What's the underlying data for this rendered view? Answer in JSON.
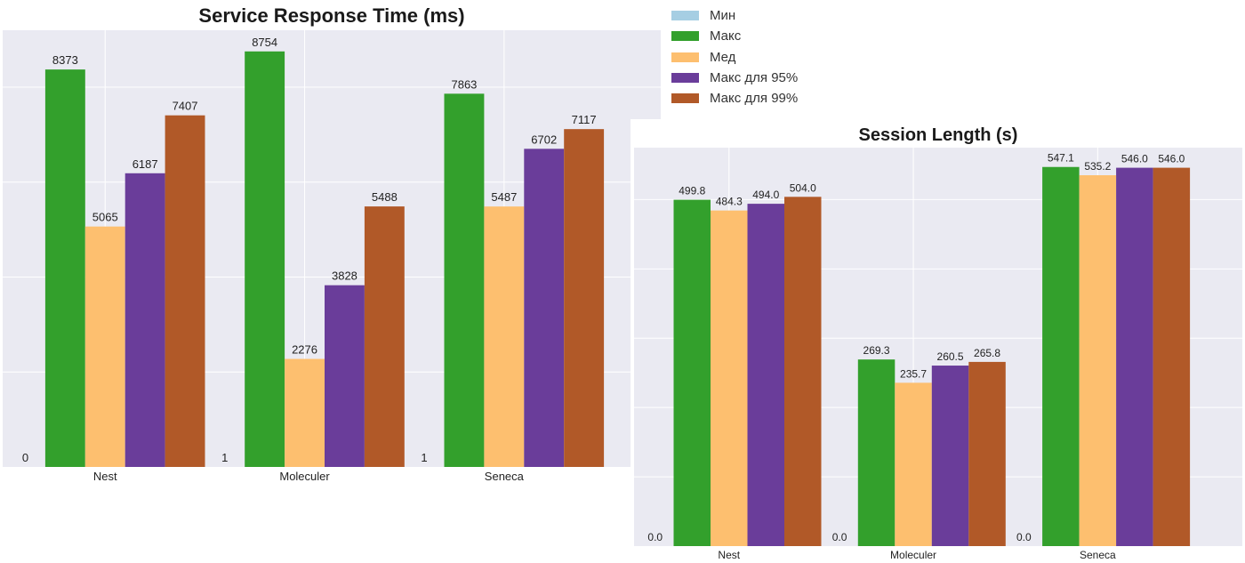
{
  "colors": [
    "#a6cee3",
    "#33a02c",
    "#fdbf6f",
    "#6a3d9a",
    "#b15928"
  ],
  "legend": [
    "Мин",
    "Макс",
    "Мед",
    "Макс для 95%",
    "Макс для 99%"
  ],
  "chart_data": [
    {
      "type": "bar",
      "title": "Service Response Time (ms)",
      "categories": [
        "Nest",
        "Moleculer",
        "Seneca"
      ],
      "ylim": [
        0,
        9200
      ],
      "grid": true,
      "series": [
        {
          "name": "Мин",
          "values": [
            0,
            1,
            1
          ],
          "labels": [
            "0",
            "1",
            "1"
          ]
        },
        {
          "name": "Макс",
          "values": [
            8373,
            8754,
            7863
          ],
          "labels": [
            "8373",
            "8754",
            "7863"
          ]
        },
        {
          "name": "Мед",
          "values": [
            5065,
            2276,
            5487
          ],
          "labels": [
            "5065",
            "2276",
            "5487"
          ]
        },
        {
          "name": "Макс для 95%",
          "values": [
            6187,
            3828,
            6702
          ],
          "labels": [
            "6187",
            "3828",
            "6702"
          ]
        },
        {
          "name": "Макс для 99%",
          "values": [
            7407,
            5488,
            7117
          ],
          "labels": [
            "7407",
            "5488",
            "7117"
          ]
        }
      ]
    },
    {
      "type": "bar",
      "title": "Session Length (s)",
      "categories": [
        "Nest",
        "Moleculer",
        "Seneca"
      ],
      "ylim": [
        0,
        575
      ],
      "grid": true,
      "series": [
        {
          "name": "Мин",
          "values": [
            0.0,
            0.0,
            0.0
          ],
          "labels": [
            "0.0",
            "0.0",
            "0.0"
          ]
        },
        {
          "name": "Макс",
          "values": [
            499.8,
            269.3,
            547.1
          ],
          "labels": [
            "499.8",
            "269.3",
            "547.1"
          ]
        },
        {
          "name": "Мед",
          "values": [
            484.3,
            235.7,
            535.2
          ],
          "labels": [
            "484.3",
            "235.7",
            "535.2"
          ]
        },
        {
          "name": "Макс для 95%",
          "values": [
            494.0,
            260.5,
            546.0
          ],
          "labels": [
            "494.0",
            "260.5",
            "546.0"
          ]
        },
        {
          "name": "Макс для 99%",
          "values": [
            504.0,
            265.8,
            546.0
          ],
          "labels": [
            "504.0",
            "265.8",
            "546.0"
          ]
        }
      ]
    }
  ]
}
